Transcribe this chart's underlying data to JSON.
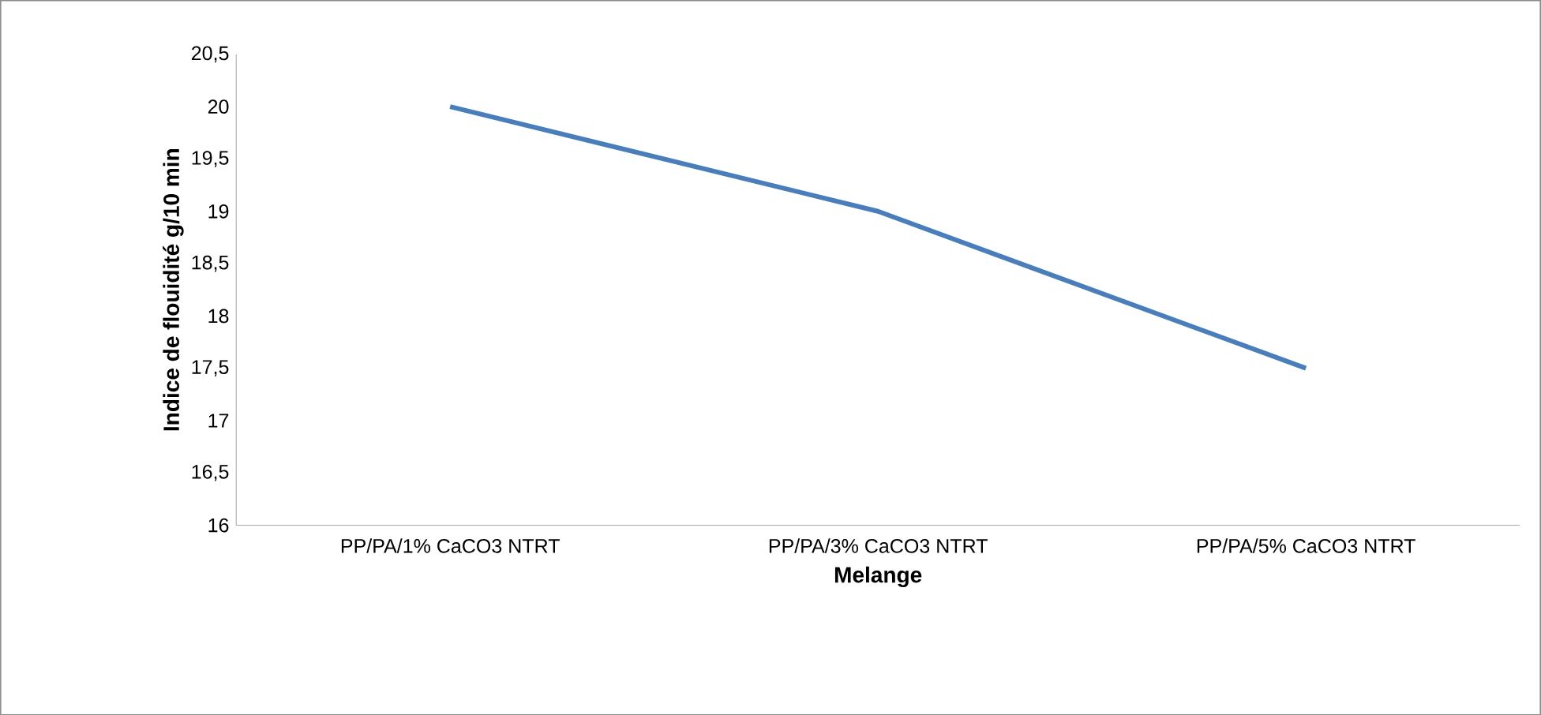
{
  "chart_data": {
    "type": "line",
    "xlabel": "Melange",
    "ylabel": "Indice de flouidité g/10 min",
    "categories": [
      "PP/PA/1% CaCO3 NTRT",
      "PP/PA/3% CaCO3 NTRT",
      "PP/PA/5% CaCO3 NTRT"
    ],
    "series": [
      {
        "color": "#4a7ebb",
        "values": [
          20,
          19,
          17.5
        ]
      }
    ],
    "ylim": [
      16,
      20.5
    ],
    "yticks": [
      {
        "value": 16,
        "label": "16"
      },
      {
        "value": 16.5,
        "label": "16,5"
      },
      {
        "value": 17,
        "label": "17"
      },
      {
        "value": 17.5,
        "label": "17,5"
      },
      {
        "value": 18,
        "label": "18"
      },
      {
        "value": 18.5,
        "label": "18,5"
      },
      {
        "value": 19,
        "label": "19"
      },
      {
        "value": 19.5,
        "label": "19,5"
      },
      {
        "value": 20,
        "label": "20"
      },
      {
        "value": 20.5,
        "label": "20,5"
      }
    ],
    "grid": false
  }
}
